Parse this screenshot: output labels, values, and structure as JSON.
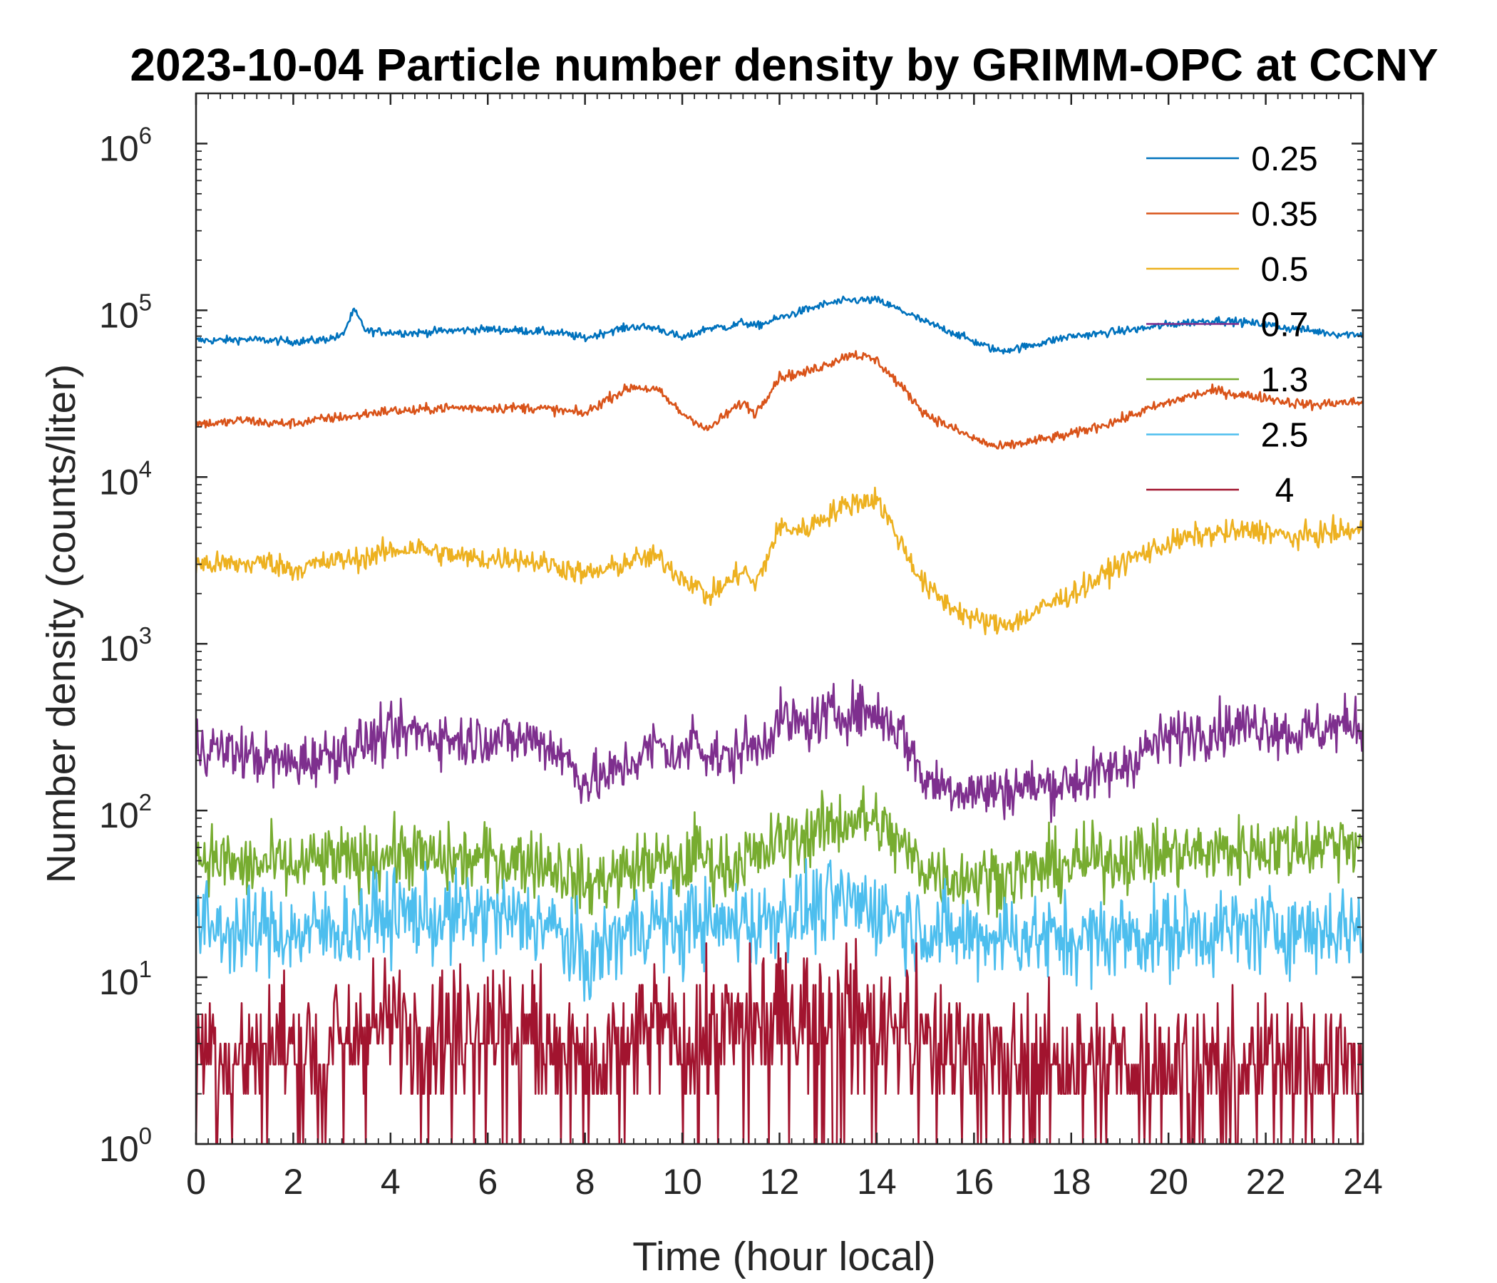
{
  "chart_data": {
    "type": "line",
    "title": "2023-10-04 Particle number density by GRIMM-OPC at CCNY",
    "xlabel": "Time (hour local)",
    "ylabel": "Number density (counts/liter)",
    "xlim": [
      0,
      24
    ],
    "ylim": [
      1,
      2000000
    ],
    "yscale": "log",
    "xticks": [
      "0",
      "2",
      "4",
      "6",
      "8",
      "10",
      "12",
      "14",
      "16",
      "18",
      "20",
      "22",
      "24"
    ],
    "yticks": [
      {
        "base": "10",
        "exp": "0"
      },
      {
        "base": "10",
        "exp": "1"
      },
      {
        "base": "10",
        "exp": "2"
      },
      {
        "base": "10",
        "exp": "3"
      },
      {
        "base": "10",
        "exp": "4"
      },
      {
        "base": "10",
        "exp": "5"
      },
      {
        "base": "10",
        "exp": "6"
      }
    ],
    "legend_position": "top-right",
    "x": [
      0,
      0.5,
      1,
      1.5,
      2,
      2.5,
      3,
      3.25,
      3.5,
      4,
      4.5,
      5,
      5.5,
      6,
      6.5,
      7,
      7.5,
      8,
      8.5,
      9,
      9.5,
      10,
      10.25,
      10.5,
      11,
      11.25,
      11.5,
      12,
      12.5,
      13,
      13.5,
      14,
      14.5,
      15,
      15.5,
      16,
      16.5,
      17,
      17.5,
      18,
      18.5,
      19,
      19.5,
      20,
      20.5,
      21,
      21.5,
      22,
      22.5,
      23,
      23.5,
      24
    ],
    "series": [
      {
        "name": "0.25",
        "color": "#0072BD",
        "values": [
          66000,
          66000,
          67000,
          66000,
          65000,
          66000,
          70000,
          100000,
          75000,
          74000,
          73000,
          75000,
          76000,
          77000,
          76000,
          75000,
          73000,
          68000,
          75000,
          80000,
          78000,
          68000,
          72000,
          78000,
          80000,
          85000,
          80000,
          90000,
          100000,
          110000,
          115000,
          115000,
          100000,
          85000,
          75000,
          65000,
          57000,
          60000,
          65000,
          70000,
          72000,
          75000,
          78000,
          82000,
          85000,
          87000,
          85000,
          82000,
          78000,
          75000,
          72000,
          72000
        ]
      },
      {
        "name": "0.35",
        "color": "#D95319",
        "values": [
          21000,
          21000,
          22000,
          21000,
          21000,
          22000,
          23000,
          23000,
          24000,
          25000,
          25000,
          26000,
          26000,
          26000,
          26000,
          26000,
          25000,
          24000,
          30000,
          35000,
          33000,
          24000,
          22000,
          19000,
          25000,
          28000,
          24000,
          40000,
          42000,
          48000,
          55000,
          50000,
          35000,
          24000,
          20000,
          17000,
          15000,
          16000,
          17000,
          18000,
          20000,
          22000,
          25000,
          28000,
          31000,
          33000,
          31000,
          30000,
          28000,
          27000,
          28000,
          28000
        ]
      },
      {
        "name": "0.5",
        "color": "#EDB120",
        "values": [
          3000,
          3000,
          3000,
          3100,
          2800,
          3000,
          3200,
          3200,
          3300,
          3600,
          3800,
          3500,
          3300,
          3200,
          3300,
          3100,
          2900,
          2600,
          2800,
          3200,
          3300,
          2500,
          2300,
          1900,
          2400,
          2800,
          2200,
          5000,
          4800,
          6000,
          7000,
          7500,
          4000,
          2200,
          1700,
          1400,
          1300,
          1400,
          1700,
          2000,
          2400,
          3000,
          3500,
          4000,
          4400,
          4600,
          4700,
          4800,
          4300,
          4500,
          4700,
          4800
        ]
      },
      {
        "name": "0.7",
        "color": "#7E2F8E",
        "values": [
          250,
          230,
          220,
          200,
          190,
          210,
          230,
          240,
          260,
          280,
          300,
          280,
          260,
          280,
          260,
          270,
          220,
          150,
          160,
          200,
          250,
          200,
          300,
          220,
          200,
          250,
          230,
          350,
          320,
          370,
          400,
          380,
          300,
          150,
          140,
          130,
          130,
          140,
          140,
          150,
          160,
          180,
          230,
          270,
          300,
          310,
          320,
          330,
          290,
          300,
          320,
          340
        ]
      },
      {
        "name": "1.3",
        "color": "#77AC30",
        "values": [
          55,
          50,
          45,
          48,
          45,
          50,
          50,
          48,
          52,
          55,
          55,
          50,
          50,
          52,
          50,
          50,
          45,
          35,
          40,
          45,
          50,
          42,
          60,
          50,
          45,
          55,
          50,
          65,
          70,
          80,
          90,
          85,
          60,
          45,
          40,
          40,
          40,
          42,
          45,
          48,
          50,
          52,
          55,
          55,
          55,
          57,
          58,
          60,
          60,
          62,
          65,
          68
        ]
      },
      {
        "name": "2.5",
        "color": "#4DBEEE",
        "values": [
          20,
          20,
          18,
          20,
          18,
          19,
          20,
          20,
          22,
          24,
          24,
          22,
          23,
          24,
          22,
          22,
          18,
          12,
          16,
          20,
          22,
          18,
          25,
          20,
          20,
          24,
          20,
          25,
          25,
          27,
          28,
          26,
          22,
          20,
          18,
          18,
          18,
          18,
          17,
          17,
          17,
          18,
          18,
          18,
          19,
          19,
          19,
          19,
          20,
          19,
          20,
          20
        ]
      },
      {
        "name": "4",
        "color": "#A2142F",
        "values": [
          4,
          4,
          3,
          4,
          4,
          4,
          4,
          4,
          5,
          5,
          5,
          5,
          5,
          6,
          5,
          5,
          4,
          3,
          3,
          4,
          5,
          4,
          5,
          4,
          5,
          6,
          5,
          6,
          6,
          6,
          6,
          5,
          5,
          4,
          4,
          4,
          3,
          3,
          3,
          3,
          3,
          3,
          3,
          3,
          3,
          3,
          3,
          3,
          4,
          3,
          3,
          3
        ]
      }
    ]
  }
}
